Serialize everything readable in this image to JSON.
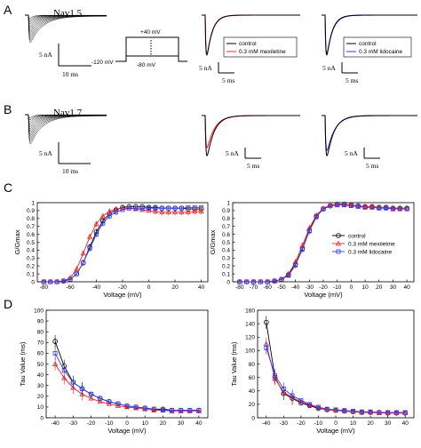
{
  "figure": {
    "panel_labels": [
      "A",
      "B",
      "C",
      "D"
    ],
    "row_a": {
      "title": "Nav1.5",
      "scale_current": "5 nA",
      "scale_time": "10 ms",
      "protocol": {
        "top_voltage": "+40 mV",
        "mid_voltage": "-80 mV",
        "hold_voltage": "-120 mV"
      },
      "mex_scale_current": "5 nA",
      "mex_scale_time": "5 ms",
      "lid_scale_current": "5 nA",
      "lid_scale_time": "5 ms",
      "mex_legend": [
        "control",
        "0.3 mM mexiletine"
      ],
      "lid_legend": [
        "control",
        "0.3 mM lidocaine"
      ]
    },
    "row_b": {
      "title": "Nav1.7",
      "scale_current": "5 nA",
      "scale_time": "10 ms",
      "mex_scale_current": "5 nA",
      "mex_scale_time": "5 ms",
      "lid_scale_current": "5 nA",
      "lid_scale_time": "5 ms"
    },
    "colors": {
      "control": "#000000",
      "mexiletine": "#e8262c",
      "lidocaine": "#3a3ae0"
    }
  },
  "chart_data": [
    {
      "type": "scatter",
      "panel": "C-left",
      "xlabel": "Voltage (mV)",
      "ylabel": "G/Gmax",
      "xlim": [
        -85,
        45
      ],
      "ylim": [
        0,
        1
      ],
      "xticks": [
        "-80",
        "-60",
        "-40",
        "-20",
        "0",
        "20",
        "40"
      ],
      "yticks": [
        "0",
        "0.1",
        "0.2",
        "0.3",
        "0.4",
        "0.5",
        "0.6",
        "0.7",
        "0.8",
        "0.9",
        "1"
      ],
      "x": [
        -80,
        -75,
        -70,
        -65,
        -60,
        -55,
        -50,
        -45,
        -40,
        -35,
        -30,
        -25,
        -20,
        -15,
        -10,
        -5,
        0,
        5,
        10,
        15,
        20,
        25,
        30,
        35,
        40
      ],
      "series": [
        {
          "name": "control",
          "marker": "circle",
          "color": "#000000",
          "values": [
            0.0,
            0.0,
            0.0,
            0.01,
            0.03,
            0.1,
            0.24,
            0.44,
            0.63,
            0.77,
            0.86,
            0.91,
            0.94,
            0.95,
            0.95,
            0.95,
            0.94,
            0.94,
            0.93,
            0.93,
            0.93,
            0.93,
            0.92,
            0.92,
            0.92
          ]
        },
        {
          "name": "0.3 mM mexiletine",
          "marker": "triangle",
          "color": "#e8262c",
          "values": [
            0.0,
            0.0,
            0.0,
            0.01,
            0.05,
            0.16,
            0.36,
            0.57,
            0.73,
            0.83,
            0.89,
            0.92,
            0.93,
            0.93,
            0.92,
            0.91,
            0.9,
            0.89,
            0.88,
            0.88,
            0.88,
            0.88,
            0.88,
            0.89,
            0.89
          ]
        },
        {
          "name": "0.3 mM lidocaine",
          "marker": "square",
          "color": "#3a3ae0",
          "values": [
            0.0,
            0.0,
            0.0,
            0.01,
            0.03,
            0.1,
            0.24,
            0.42,
            0.6,
            0.74,
            0.83,
            0.88,
            0.91,
            0.93,
            0.93,
            0.93,
            0.93,
            0.93,
            0.93,
            0.93,
            0.93,
            0.93,
            0.94,
            0.94,
            0.94
          ]
        }
      ]
    },
    {
      "type": "scatter",
      "panel": "C-right",
      "xlabel": "Voltage (mV)",
      "ylabel": "G/Gmax",
      "xlim": [
        -85,
        45
      ],
      "ylim": [
        0,
        1
      ],
      "xticks": [
        "-80",
        "-70",
        "-60",
        "-50",
        "-40",
        "-30",
        "-20",
        "-10",
        "0",
        "10",
        "20",
        "30",
        "40"
      ],
      "yticks": [
        "0",
        "0.1",
        "0.2",
        "0.3",
        "0.4",
        "0.5",
        "0.6",
        "0.7",
        "0.8",
        "0.9",
        "1"
      ],
      "legend": [
        "control",
        "0.3 mM mexiletine",
        "0.3 mM lidocaine"
      ],
      "x": [
        -80,
        -75,
        -70,
        -65,
        -60,
        -55,
        -50,
        -45,
        -40,
        -35,
        -30,
        -25,
        -20,
        -15,
        -10,
        -5,
        0,
        5,
        10,
        15,
        20,
        25,
        30,
        35,
        40
      ],
      "series": [
        {
          "name": "control",
          "marker": "circle",
          "color": "#000000",
          "values": [
            0.0,
            0.0,
            0.0,
            0.0,
            0.0,
            0.01,
            0.03,
            0.09,
            0.22,
            0.42,
            0.65,
            0.83,
            0.92,
            0.96,
            0.98,
            0.98,
            0.97,
            0.96,
            0.95,
            0.95,
            0.94,
            0.94,
            0.93,
            0.93,
            0.93
          ]
        },
        {
          "name": "0.3 mM mexiletine",
          "marker": "triangle",
          "color": "#e8262c",
          "values": [
            0.0,
            0.0,
            0.0,
            0.0,
            0.0,
            0.01,
            0.03,
            0.1,
            0.25,
            0.46,
            0.68,
            0.84,
            0.93,
            0.97,
            0.98,
            0.98,
            0.97,
            0.96,
            0.95,
            0.95,
            0.94,
            0.94,
            0.93,
            0.93,
            0.93
          ]
        },
        {
          "name": "0.3 mM lidocaine",
          "marker": "square",
          "color": "#3a3ae0",
          "values": [
            0.0,
            0.0,
            0.0,
            0.0,
            0.0,
            0.01,
            0.03,
            0.08,
            0.21,
            0.41,
            0.64,
            0.82,
            0.92,
            0.96,
            0.97,
            0.97,
            0.96,
            0.95,
            0.94,
            0.94,
            0.93,
            0.93,
            0.92,
            0.92,
            0.92
          ]
        }
      ]
    },
    {
      "type": "line",
      "panel": "D-left",
      "xlabel": "Voltage (mV)",
      "ylabel": "Tau Value (ms)",
      "xlim": [
        -45,
        45
      ],
      "ylim": [
        0,
        100
      ],
      "xticks": [
        "-40",
        "-30",
        "-20",
        "-10",
        "0",
        "10",
        "20",
        "30",
        "40"
      ],
      "yticks": [
        "0",
        "10",
        "20",
        "30",
        "40",
        "50",
        "60",
        "70",
        "80",
        "90",
        "100"
      ],
      "x": [
        -40,
        -35,
        -30,
        -25,
        -20,
        -15,
        -10,
        -5,
        0,
        5,
        10,
        15,
        20,
        25,
        30,
        35,
        40
      ],
      "series": [
        {
          "name": "control",
          "marker": "circle",
          "color": "#000000",
          "values": [
            71,
            48,
            33,
            27,
            22,
            18,
            15,
            13,
            11,
            10,
            9,
            8,
            8,
            7,
            7,
            7,
            7
          ]
        },
        {
          "name": "0.3 mM mexiletine",
          "marker": "triangle",
          "color": "#e8262c",
          "values": [
            50,
            37,
            28,
            22,
            18,
            15,
            13,
            11,
            10,
            9,
            8,
            7,
            7,
            6,
            6,
            6,
            6
          ]
        },
        {
          "name": "0.3 mM lidocaine",
          "marker": "square",
          "color": "#3a3ae0",
          "values": [
            60,
            44,
            33,
            27,
            22,
            18,
            15,
            13,
            11,
            10,
            9,
            8,
            7,
            7,
            7,
            7,
            7
          ]
        }
      ]
    },
    {
      "type": "line",
      "panel": "D-right",
      "xlabel": "Voltage (mV)",
      "ylabel": "Tau Value (ms)",
      "xlim": [
        -45,
        45
      ],
      "ylim": [
        0,
        160
      ],
      "xticks": [
        "-40",
        "-30",
        "-20",
        "-10",
        "0",
        "10",
        "20",
        "30",
        "40"
      ],
      "yticks": [
        "0",
        "20",
        "40",
        "60",
        "80",
        "100",
        "120",
        "140",
        "160"
      ],
      "x": [
        -40,
        -35,
        -30,
        -25,
        -20,
        -15,
        -10,
        -5,
        0,
        5,
        10,
        15,
        20,
        25,
        30,
        35,
        40
      ],
      "series": [
        {
          "name": "control",
          "marker": "circle",
          "color": "#000000",
          "values": [
            142,
            60,
            36,
            29,
            22,
            18,
            14,
            12,
            11,
            10,
            9,
            8,
            8,
            8,
            7,
            7,
            7
          ]
        },
        {
          "name": "0.3 mM mexiletine",
          "marker": "triangle",
          "color": "#e8262c",
          "values": [
            110,
            58,
            38,
            30,
            24,
            19,
            15,
            12,
            11,
            10,
            9,
            8,
            8,
            7,
            7,
            7,
            7
          ]
        },
        {
          "name": "0.3 mM lidocaine",
          "marker": "square",
          "color": "#3a3ae0",
          "values": [
            104,
            63,
            43,
            33,
            26,
            20,
            16,
            13,
            12,
            11,
            10,
            9,
            9,
            8,
            8,
            8,
            8
          ]
        }
      ]
    }
  ]
}
